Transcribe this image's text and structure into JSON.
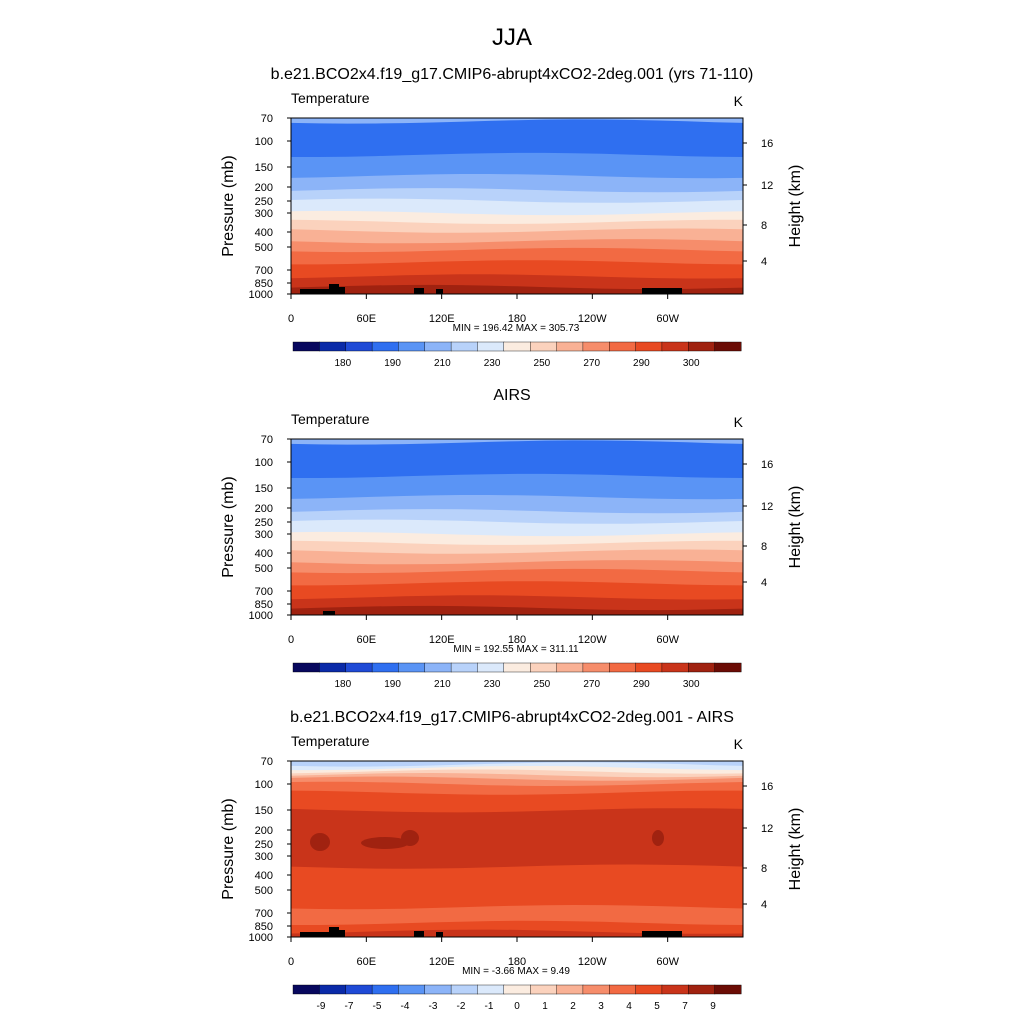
{
  "figure": {
    "title": "JJA",
    "colors": {
      "temperature_scale": [
        "#08085e",
        "#0a2aa8",
        "#1f4ad6",
        "#2f6ff0",
        "#5a94f5",
        "#8cb4f8",
        "#b8d2fa",
        "#dbe9fb",
        "#fbece0",
        "#fbd2bd",
        "#f9b195",
        "#f68d6b",
        "#f26a43",
        "#e84a22",
        "#c9341a",
        "#a02210",
        "#6b0c05"
      ],
      "difference_scale": [
        "#08085e",
        "#0a2aa8",
        "#1f4ad6",
        "#2f6ff0",
        "#5a94f5",
        "#8cb4f8",
        "#b8d2fa",
        "#dbe9fb",
        "#fbece0",
        "#fbd2bd",
        "#f9b195",
        "#f68d6b",
        "#f26a43",
        "#e84a22",
        "#c9341a",
        "#a02210",
        "#6b0c05"
      ],
      "terrain": "#000000"
    }
  },
  "chart_data": [
    {
      "type": "heatmap",
      "title": "b.e21.BCO2x4.f19_g17.CMIP6-abrupt4xCO2-2deg.001 (yrs 71-110)",
      "field_label": "Temperature",
      "units": "K",
      "ylabel": "Pressure (mb)",
      "ylabel_right": "Height (km)",
      "x_tick_labels": [
        "0",
        "60E",
        "120E",
        "180",
        "120W",
        "60W"
      ],
      "y_tick_labels": [
        "70",
        "100",
        "150",
        "200",
        "250",
        "300",
        "400",
        "500",
        "700",
        "850",
        "1000"
      ],
      "y2_tick_labels": [
        "16",
        "12",
        "8",
        "4"
      ],
      "stats_label": "MIN = 196.42  MAX = 305.73",
      "colorbar_labels": [
        "180",
        "190",
        "210",
        "230",
        "250",
        "270",
        "290",
        "300"
      ]
    },
    {
      "type": "heatmap",
      "title": "AIRS",
      "field_label": "Temperature",
      "units": "K",
      "ylabel": "Pressure (mb)",
      "ylabel_right": "Height (km)",
      "x_tick_labels": [
        "0",
        "60E",
        "120E",
        "180",
        "120W",
        "60W"
      ],
      "y_tick_labels": [
        "70",
        "100",
        "150",
        "200",
        "250",
        "300",
        "400",
        "500",
        "700",
        "850",
        "1000"
      ],
      "y2_tick_labels": [
        "16",
        "12",
        "8",
        "4"
      ],
      "stats_label": "MIN = 192.55  MAX = 311.11",
      "colorbar_labels": [
        "180",
        "190",
        "210",
        "230",
        "250",
        "270",
        "290",
        "300"
      ]
    },
    {
      "type": "heatmap",
      "title": "b.e21.BCO2x4.f19_g17.CMIP6-abrupt4xCO2-2deg.001 - AIRS",
      "field_label": "Temperature",
      "units": "K",
      "ylabel": "Pressure (mb)",
      "ylabel_right": "Height (km)",
      "x_tick_labels": [
        "0",
        "60E",
        "120E",
        "180",
        "120W",
        "60W"
      ],
      "y_tick_labels": [
        "70",
        "100",
        "150",
        "200",
        "250",
        "300",
        "400",
        "500",
        "700",
        "850",
        "1000"
      ],
      "y2_tick_labels": [
        "16",
        "12",
        "8",
        "4"
      ],
      "stats_label": "MIN = -3.66  MAX =  9.49",
      "colorbar_labels": [
        "-9",
        "-7",
        "-5",
        "-4",
        "-3",
        "-2",
        "-1",
        "0",
        "1",
        "2",
        "3",
        "4",
        "5",
        "7",
        "9"
      ]
    }
  ]
}
